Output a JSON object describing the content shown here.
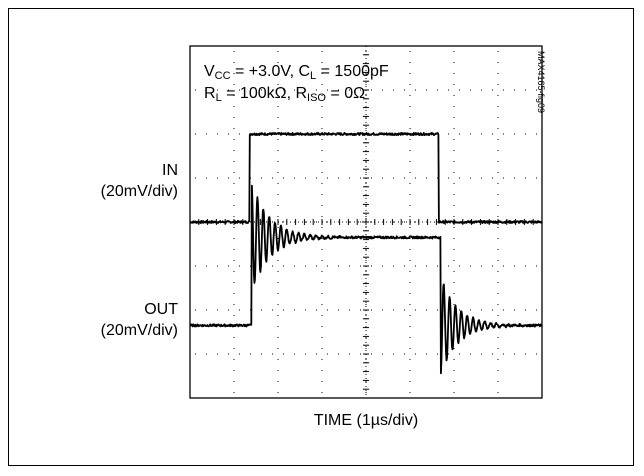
{
  "chart_data": {
    "type": "line",
    "title": "",
    "xlabel": "TIME (1µs/div)",
    "divisions": {
      "x": 8,
      "y": 8
    },
    "annotation": {
      "line1": {
        "v": "V",
        "v_sub": "CC",
        "v_rest": " = +3.0V, C",
        "c_sub": "L",
        "c_rest": " = 1500pF"
      },
      "line2": {
        "r": "R",
        "r_sub": "L",
        "r_rest": " = 100kΩ, R",
        "riso_sub": "ISO",
        "riso_rest": " = 0Ω"
      }
    },
    "figure_id": "MAX4165-fig09",
    "series": [
      {
        "name": "IN",
        "scale": "(20mV/div)",
        "low_div": 0,
        "high_div": 2,
        "baseline_div": 4,
        "rise_time_div": 1.35,
        "fall_time_div": 5.65
      },
      {
        "name": "OUT",
        "scale": "(20mV/div)",
        "low_div": 0,
        "high_div": 2,
        "baseline_div": 1.65,
        "rise_time_div": 1.4,
        "fall_time_div": 5.7,
        "overshoot_div": 1.25,
        "ring_cycles": 6
      }
    ],
    "grid": true
  }
}
